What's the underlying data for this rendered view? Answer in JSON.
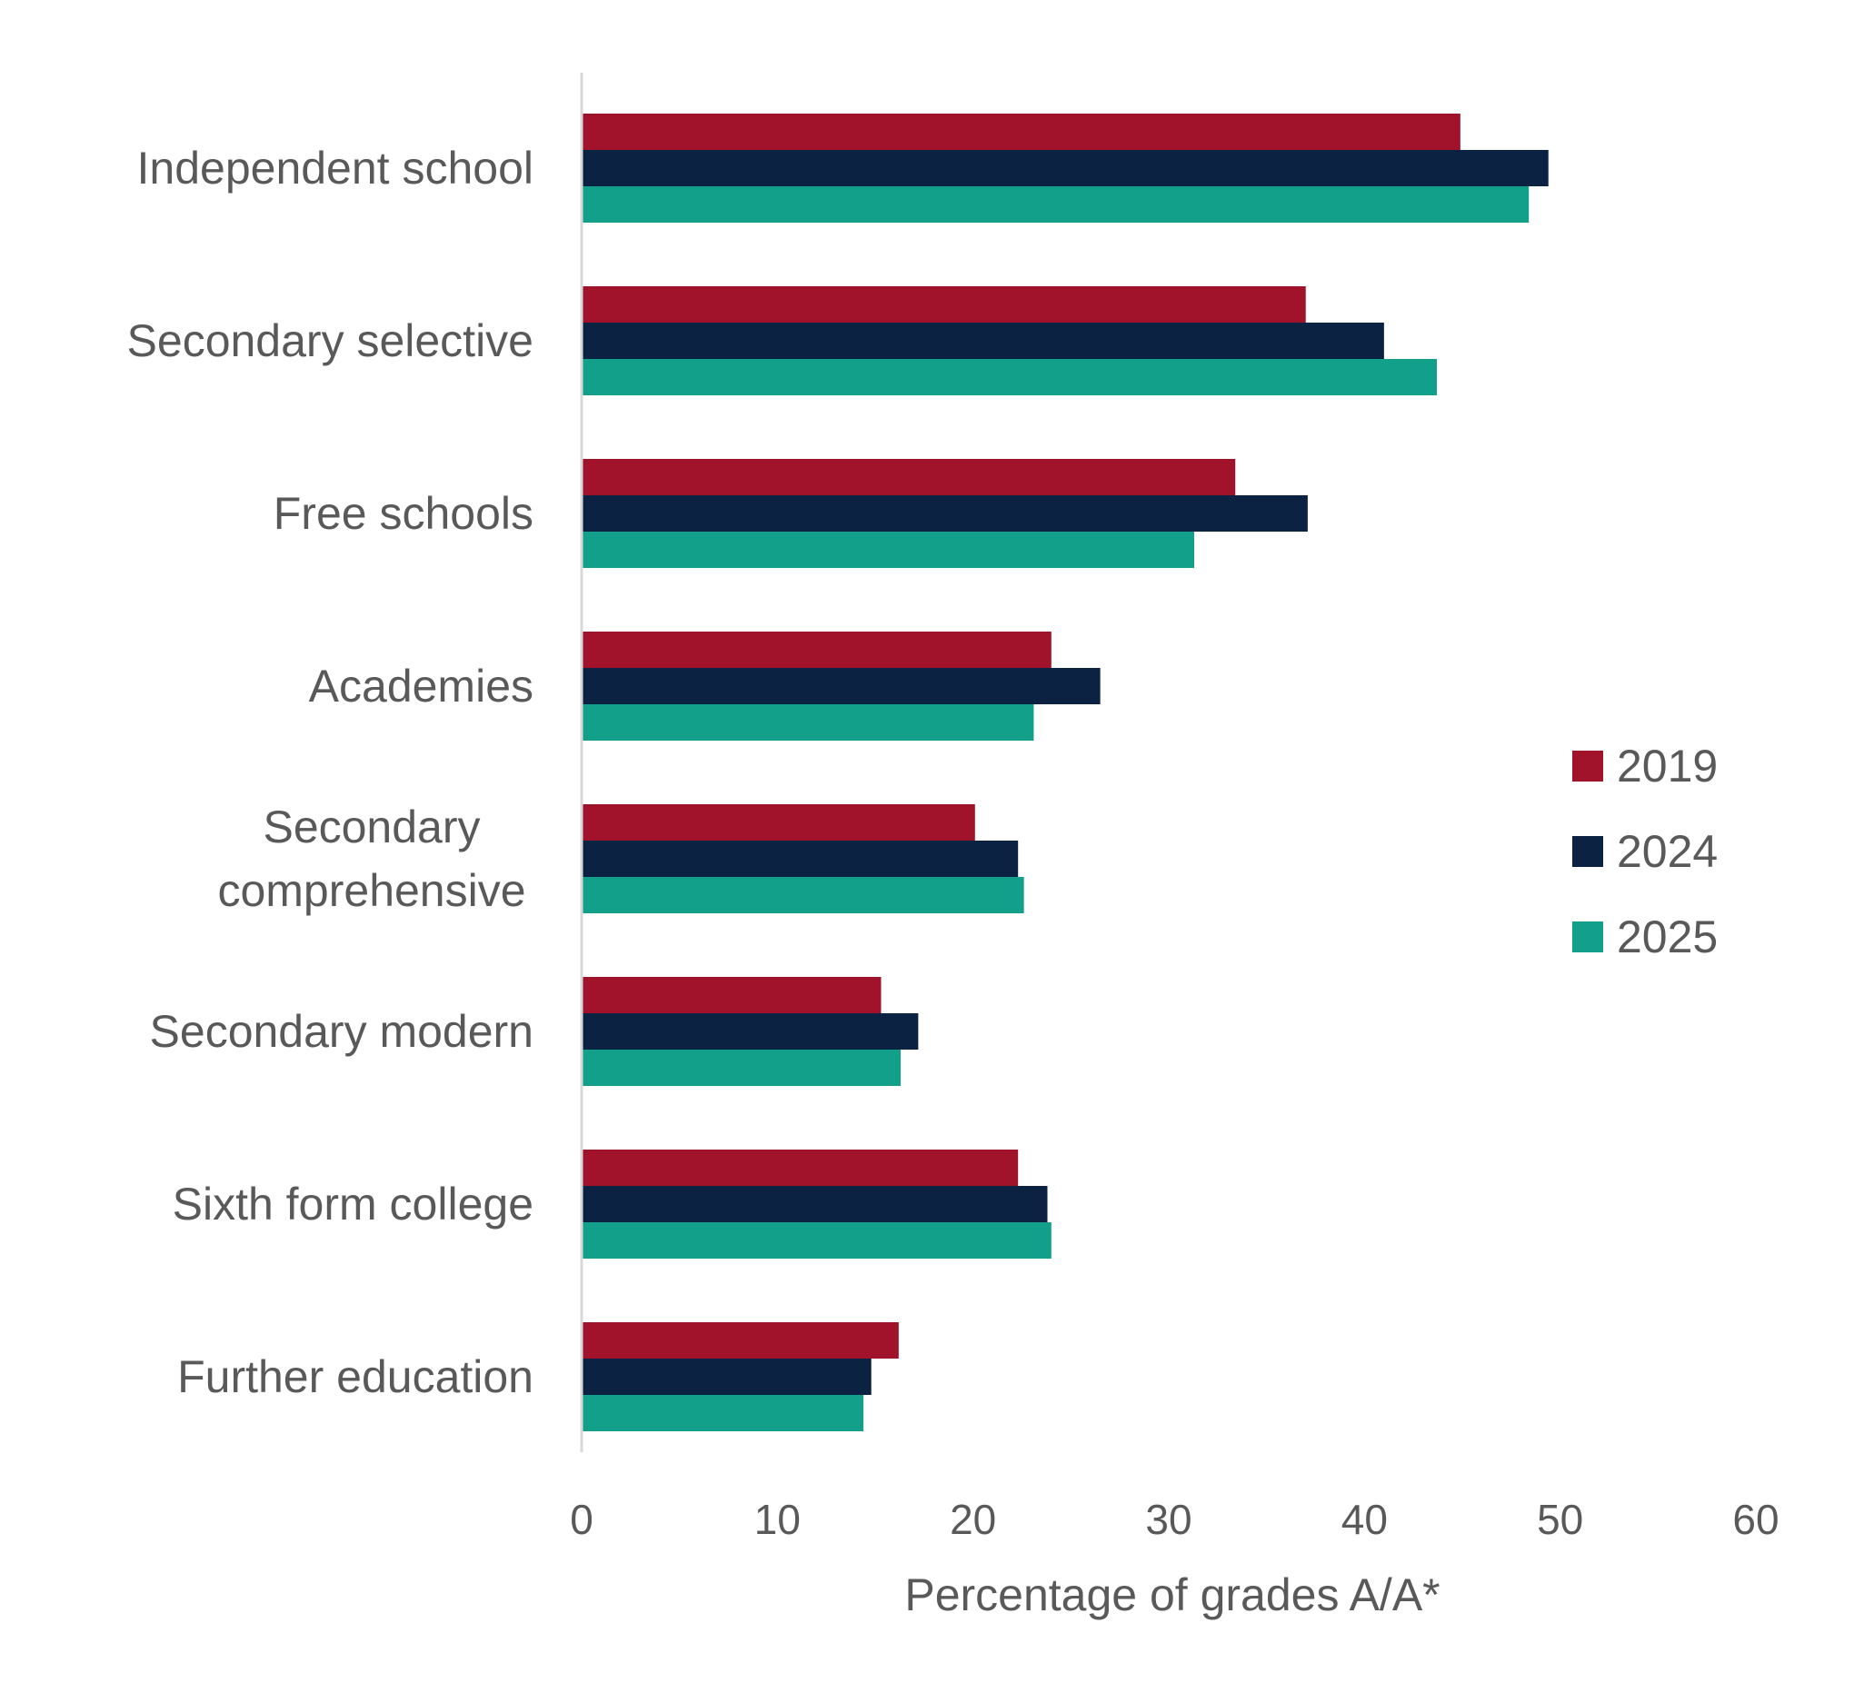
{
  "chart_data": {
    "type": "bar",
    "orientation": "horizontal",
    "categories": [
      "Independent school",
      "Secondary selective",
      "Free schools",
      "Academies",
      "Secondary comprehensive",
      "Secondary modern",
      "Sixth form college",
      "Further education"
    ],
    "category_lines": [
      [
        "Independent school"
      ],
      [
        "Secondary selective"
      ],
      [
        "Free schools"
      ],
      [
        "Academies"
      ],
      [
        "Secondary",
        "comprehensive"
      ],
      [
        "Secondary modern"
      ],
      [
        "Sixth form college"
      ],
      [
        "Further education"
      ]
    ],
    "series": [
      {
        "name": "2019",
        "color": "#a0132a",
        "values": [
          44.9,
          37.0,
          33.4,
          24.0,
          20.1,
          15.3,
          22.3,
          16.2
        ]
      },
      {
        "name": "2024",
        "color": "#0b2243",
        "values": [
          49.4,
          41.0,
          37.1,
          26.5,
          22.3,
          17.2,
          23.8,
          14.8
        ]
      },
      {
        "name": "2025",
        "color": "#13a08a",
        "values": [
          48.4,
          43.7,
          31.3,
          23.1,
          22.6,
          16.3,
          24.0,
          14.4
        ]
      }
    ],
    "xlim": [
      0,
      60
    ],
    "xticks": [
      0,
      10,
      20,
      30,
      40,
      50,
      60
    ],
    "xlabel": "Percentage of grades A/A*",
    "ylabel": "",
    "title": "",
    "legend_position": "right",
    "grid": false
  }
}
